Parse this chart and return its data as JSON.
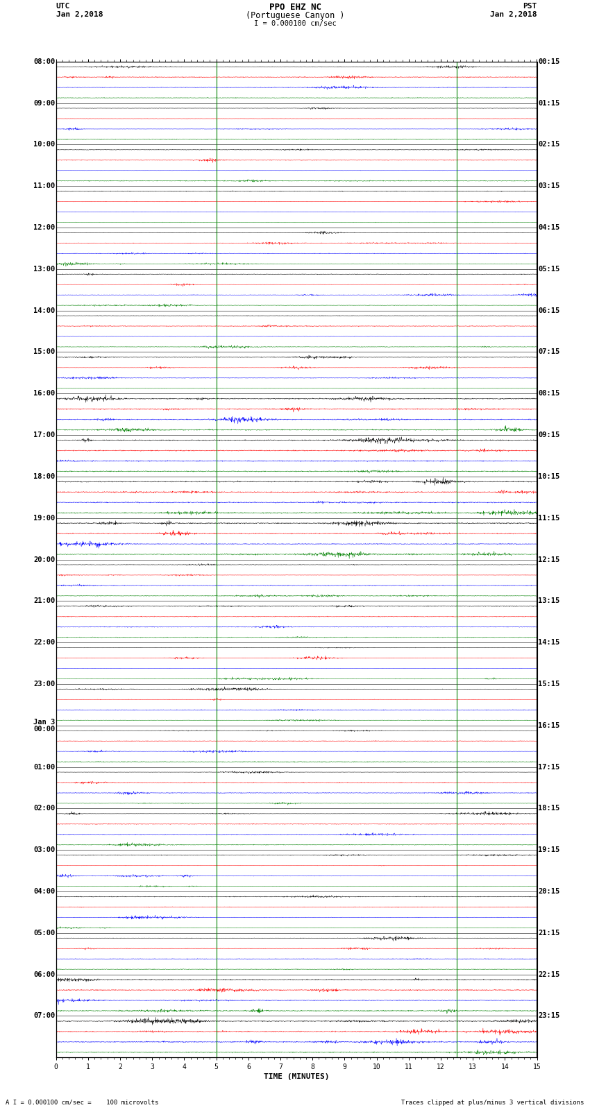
{
  "title_line1": "PPO EHZ NC",
  "title_line2": "(Portuguese Canyon )",
  "title_line3": "I = 0.000100 cm/sec",
  "left_header": "UTC",
  "left_date": "Jan 2,2018",
  "right_header": "PST",
  "right_date": "Jan 2,2018",
  "xlabel": "TIME (MINUTES)",
  "footer_left": "A I = 0.000100 cm/sec =    100 microvolts",
  "footer_right": "Traces clipped at plus/minus 3 vertical divisions",
  "utc_labels": [
    "08:00",
    "09:00",
    "10:00",
    "11:00",
    "12:00",
    "13:00",
    "14:00",
    "15:00",
    "16:00",
    "17:00",
    "18:00",
    "19:00",
    "20:00",
    "21:00",
    "22:00",
    "23:00",
    "Jan 3\n00:00",
    "01:00",
    "02:00",
    "03:00",
    "04:00",
    "05:00",
    "06:00",
    "07:00"
  ],
  "pst_labels": [
    "00:15",
    "01:15",
    "02:15",
    "03:15",
    "04:15",
    "05:15",
    "06:15",
    "07:15",
    "08:15",
    "09:15",
    "10:15",
    "11:15",
    "12:15",
    "13:15",
    "14:15",
    "15:15",
    "16:15",
    "17:15",
    "18:15",
    "19:15",
    "20:15",
    "21:15",
    "22:15",
    "23:15"
  ],
  "trace_colors": [
    "black",
    "red",
    "blue",
    "green"
  ],
  "num_hours": 24,
  "traces_per_hour": 4,
  "x_min": 0,
  "x_max": 15,
  "x_ticks": [
    0,
    1,
    2,
    3,
    4,
    5,
    6,
    7,
    8,
    9,
    10,
    11,
    12,
    13,
    14,
    15
  ],
  "background_color": "white",
  "noise_base": 0.025,
  "seed": 42,
  "vline_positions": [
    5.0,
    12.5
  ],
  "vline_color": "green"
}
